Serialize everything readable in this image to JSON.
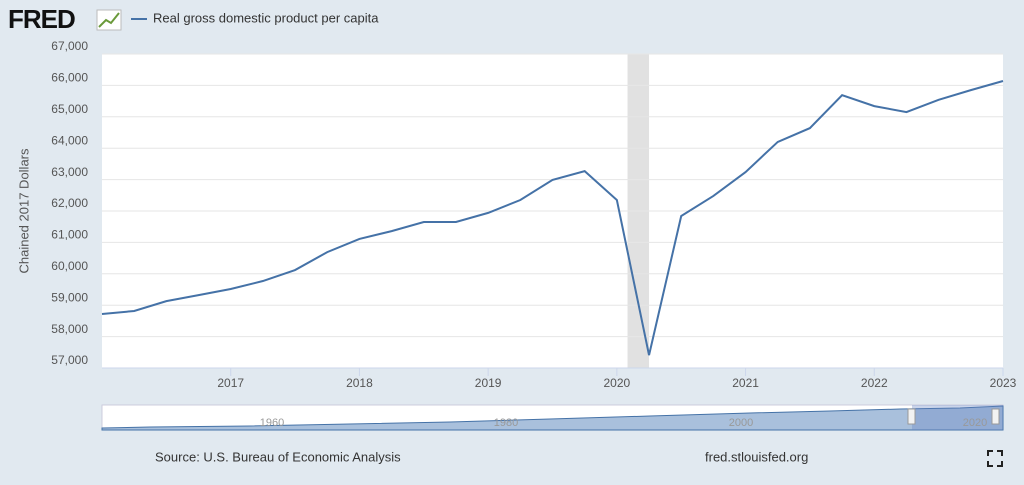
{
  "header": {
    "logo": "FRED"
  },
  "chart_data": {
    "type": "line",
    "x": [
      2016,
      2016.25,
      2016.5,
      2016.75,
      2017,
      2017.25,
      2017.5,
      2017.75,
      2018,
      2018.25,
      2018.5,
      2018.75,
      2019,
      2019.25,
      2019.5,
      2019.75,
      2020,
      2020.25,
      2020.5,
      2020.75,
      2021,
      2021.25,
      2021.5,
      2021.75,
      2022,
      2022.25,
      2022.5,
      2022.75,
      2023
    ],
    "series": [
      {
        "name": "Real gross domestic product per capita",
        "color": "#4572a7",
        "values": [
          58720,
          58815,
          59130,
          59320,
          59515,
          59770,
          60120,
          60690,
          61110,
          61360,
          61650,
          61650,
          61940,
          62350,
          62990,
          63270,
          62350,
          57410,
          61840,
          62480,
          63240,
          64200,
          64640,
          65690,
          65340,
          65150,
          65540,
          65850,
          66140
        ]
      }
    ],
    "y_label": "Chained 2017 Dollars",
    "xlim": [
      2016,
      2023
    ],
    "xticks": [
      2017,
      2018,
      2019,
      2020,
      2021,
      2022,
      2023
    ],
    "ylim": [
      57000,
      67000
    ],
    "yticks": [
      {
        "value": 57000,
        "label": "57,000"
      },
      {
        "value": 58000,
        "label": "58,000"
      },
      {
        "value": 59000,
        "label": "59,000"
      },
      {
        "value": 60000,
        "label": "60,000"
      },
      {
        "value": 61000,
        "label": "61,000"
      },
      {
        "value": 62000,
        "label": "62,000"
      },
      {
        "value": 63000,
        "label": "63,000"
      },
      {
        "value": 64000,
        "label": "64,000"
      },
      {
        "value": 65000,
        "label": "65,000"
      },
      {
        "value": 66000,
        "label": "66,000"
      },
      {
        "value": 67000,
        "label": "67,000"
      }
    ],
    "grid": true,
    "recessions": [
      [
        2020.083,
        2020.25
      ]
    ],
    "recession_color": "#e1e1e1",
    "navigator_labels": [
      "1960",
      "1980",
      "2000",
      "2020"
    ]
  },
  "footer": {
    "source": "Source: U.S. Bureau of Economic Analysis",
    "site": "fred.stlouisfed.org"
  }
}
